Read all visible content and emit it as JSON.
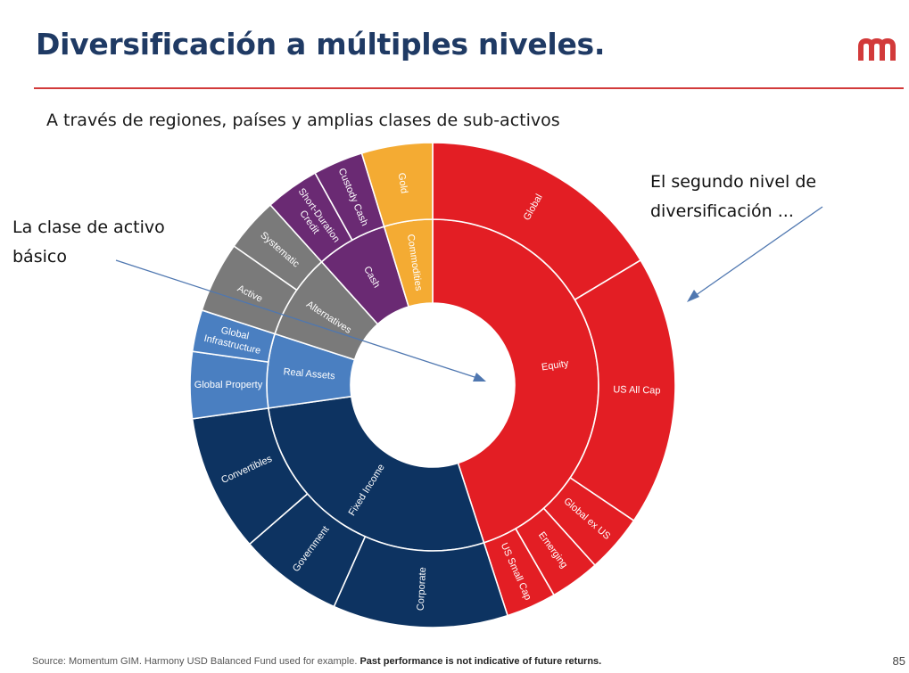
{
  "slide": {
    "title": "Diversificación a múltiples niveles.",
    "subtitle": "A través de regiones, países y amplias clases de sub-activos",
    "annotations": {
      "left": [
        "La clase de activo",
        "básico"
      ],
      "right": [
        "El segundo nivel de",
        "diversificación ..."
      ]
    },
    "footer_source": "Source: Momentum GIM. Harmony USD Balanced Fund used for example.",
    "footer_disclaimer": "Past performance is not indicative of future returns.",
    "page_number": "85",
    "logo_icon": "momentum-m-logo-icon",
    "accent_color": "#d23a3a"
  },
  "chart_data": {
    "type": "sunburst",
    "unit": "degrees of circle (estimated)",
    "inner_ring": [
      {
        "name": "Equity",
        "value": 162,
        "color": "#e31e24"
      },
      {
        "name": "Fixed Income",
        "value": 100,
        "color": "#0d3361"
      },
      {
        "name": "Real Assets",
        "value": 26,
        "color": "#4a7fc1"
      },
      {
        "name": "Alternatives",
        "value": 30,
        "color": "#7a7a7a"
      },
      {
        "name": "Cash",
        "value": 25,
        "color": "#6a2a73"
      },
      {
        "name": "Commodities",
        "value": 17,
        "color": "#f4ab33"
      }
    ],
    "outer_ring": [
      {
        "name": "Global",
        "parent": "Equity",
        "value": 59,
        "color": "#e31e24"
      },
      {
        "name": "US All Cap",
        "parent": "Equity",
        "value": 65,
        "color": "#e31e24"
      },
      {
        "name": "Global ex US",
        "parent": "Equity",
        "value": 14,
        "color": "#e31e24"
      },
      {
        "name": "Emerging",
        "parent": "Equity",
        "value": 12,
        "color": "#e31e24"
      },
      {
        "name": "US Small Cap",
        "parent": "Equity",
        "value": 12,
        "color": "#e31e24"
      },
      {
        "name": "Corporate",
        "parent": "Fixed Income",
        "value": 42,
        "color": "#0d3361"
      },
      {
        "name": "Government",
        "parent": "Fixed Income",
        "value": 25,
        "color": "#0d3361"
      },
      {
        "name": "Convertibles",
        "parent": "Fixed Income",
        "value": 33,
        "color": "#0d3361"
      },
      {
        "name": "Global Property",
        "parent": "Real Assets",
        "value": 16,
        "color": "#4a7fc1"
      },
      {
        "name": "Global Infrastructure",
        "parent": "Real Assets",
        "value": 10,
        "color": "#4a7fc1"
      },
      {
        "name": "Active",
        "parent": "Alternatives",
        "value": 17,
        "color": "#7a7a7a"
      },
      {
        "name": "Systematic",
        "parent": "Alternatives",
        "value": 13,
        "color": "#7a7a7a"
      },
      {
        "name": "Short-Duration Credit",
        "parent": "Cash",
        "value": 13,
        "color": "#6a2a73"
      },
      {
        "name": "Custody Cash",
        "parent": "Cash",
        "value": 12,
        "color": "#6a2a73"
      },
      {
        "name": "Gold",
        "parent": "Commodities",
        "value": 17,
        "color": "#f4ab33"
      }
    ]
  }
}
